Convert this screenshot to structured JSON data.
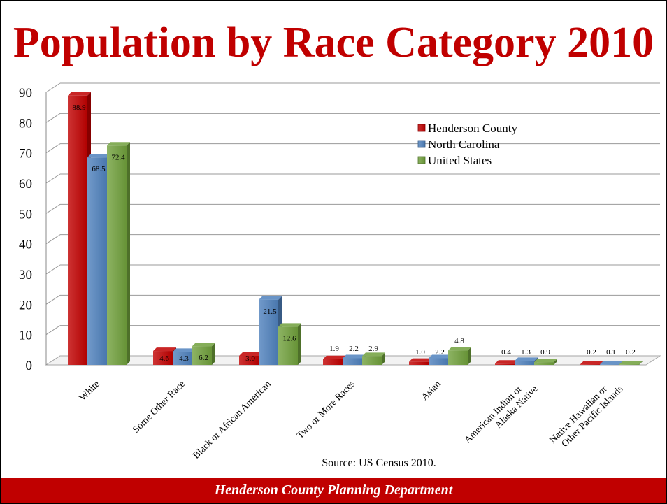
{
  "title": "Population by Race Category 2010",
  "source": "Source: US Census 2010.",
  "footer": "Henderson County Planning Department",
  "colors": {
    "title": "#c00000",
    "footer_bg": "#c00000",
    "henderson": "#c00000",
    "north_carolina": "#4f81bd",
    "united_states": "#70a03c"
  },
  "chart_data": {
    "type": "bar",
    "title": "Population by Race Category 2010",
    "xlabel": "",
    "ylabel": "",
    "ylim": [
      0,
      90
    ],
    "yticks": [
      0,
      10,
      20,
      30,
      40,
      50,
      60,
      70,
      80,
      90
    ],
    "grid": true,
    "legend_position": "top-right",
    "categories": [
      "White",
      "Some Other Race",
      "Black or African American",
      "Two or More Races",
      "Asian",
      "American Indian or Alaska Native",
      "Native Hawaiian or Other Pacific Islands"
    ],
    "category_tick_labels": [
      [
        "White"
      ],
      [
        "Some Other Race"
      ],
      [
        "Black or African American"
      ],
      [
        "Two or More Races"
      ],
      [
        "Asian"
      ],
      [
        "American Indian or",
        "Alaska Native"
      ],
      [
        "Native Hawaiian or",
        "Other Pacific Islands"
      ]
    ],
    "series": [
      {
        "name": "Henderson County",
        "color": "#c00000",
        "values": [
          88.9,
          4.6,
          3.0,
          1.9,
          1.0,
          0.4,
          0.2
        ],
        "labels": [
          "88.9",
          "4.6",
          "3.0",
          "1.9",
          "1.0",
          "0.4",
          "0.2"
        ]
      },
      {
        "name": "North Carolina",
        "color": "#4f81bd",
        "values": [
          68.5,
          4.3,
          21.5,
          2.2,
          2.2,
          1.3,
          0.1
        ],
        "labels": [
          "68.5",
          "4.3",
          "21.5",
          "2.2",
          "2.2",
          "1.3",
          "0.1"
        ]
      },
      {
        "name": "United States",
        "color": "#70a03c",
        "values": [
          72.4,
          6.2,
          12.6,
          2.9,
          4.8,
          0.9,
          0.2
        ],
        "labels": [
          "72.4",
          "6.2",
          "12.6",
          "2.9",
          "4.8",
          "0.9",
          "0.2"
        ]
      }
    ]
  }
}
